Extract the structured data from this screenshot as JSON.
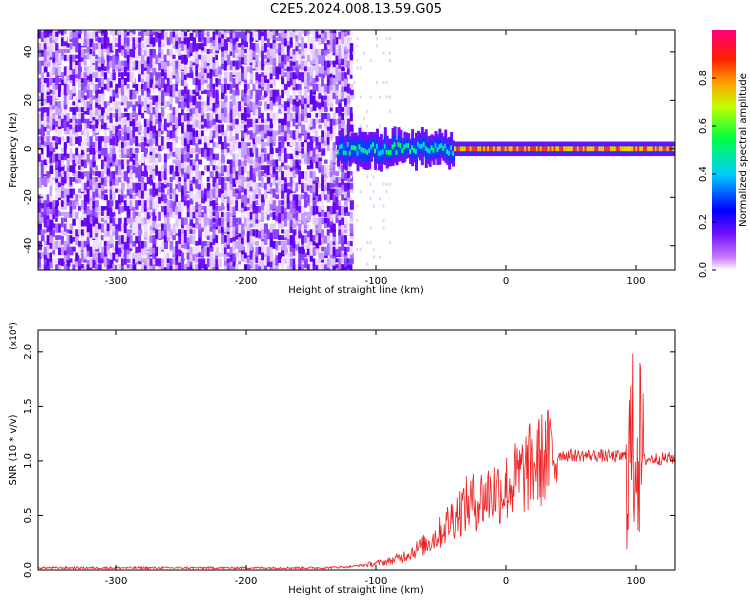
{
  "title": "C2E5.2024.008.13.59.G05",
  "colors": {
    "snr_line": "#ee2020",
    "spectrogram_noise": "#7010ff",
    "spectrogram_peak": "#ff3030"
  },
  "chart_data": [
    {
      "type": "heatmap",
      "xlabel": "Height of straight line (km)",
      "ylabel": "Frequency (Hz)",
      "xlim": [
        -360,
        130
      ],
      "ylim": [
        -50,
        49
      ],
      "xticks": [
        -300,
        -200,
        -100,
        0,
        100
      ],
      "yticks": [
        -40,
        -20,
        0,
        20,
        40
      ],
      "colorbar": {
        "label": "Normalized spectral amplitude",
        "range": [
          0.0,
          1.0
        ],
        "ticks": [
          "0.0",
          "0.2",
          "0.4",
          "0.6",
          "0.8"
        ],
        "colormap": "rainbow (purple-blue-cyan-green-yellow-orange-red-magenta)"
      },
      "regions": [
        {
          "x_range": [
            -360,
            -120
          ],
          "freq_range": [
            -50,
            49
          ],
          "level": "broadband noise",
          "amplitude": 0.15
        },
        {
          "x_range": [
            -120,
            -90
          ],
          "freq_range": [
            -50,
            49
          ],
          "level": "sparse noise",
          "amplitude": 0.05
        },
        {
          "x_range": [
            -130,
            130
          ],
          "freq_center": 0,
          "freq_halfwidth": 4,
          "level": "carrier band",
          "amplitude": 0.9
        }
      ],
      "grid": false
    },
    {
      "type": "line",
      "xlabel": "Height of straight line (km)",
      "ylabel": "SNR (10 * v/v)",
      "y_multiplier": "(x10⁴)",
      "xlim": [
        -360,
        130
      ],
      "ylim": [
        0.0,
        2.2
      ],
      "xticks": [
        -300,
        -200,
        -100,
        0,
        100
      ],
      "yticks": [
        "0.0",
        "0.5",
        "1.0",
        "1.5",
        "2.0"
      ],
      "series": [
        {
          "x": [
            -360,
            -300,
            -200,
            -140,
            -120,
            -100,
            -90,
            -80,
            -70,
            -60,
            -50,
            -40,
            -30,
            -20,
            -10,
            0,
            10,
            20,
            30,
            40,
            50,
            60,
            70,
            80,
            90,
            95,
            100,
            105,
            110,
            120,
            130
          ],
          "values": [
            0.02,
            0.02,
            0.02,
            0.02,
            0.03,
            0.06,
            0.08,
            0.12,
            0.18,
            0.25,
            0.35,
            0.5,
            0.6,
            0.65,
            0.72,
            0.75,
            0.85,
            0.95,
            1.03,
            1.06,
            1.05,
            1.05,
            1.05,
            1.04,
            1.04,
            1.05,
            1.2,
            1.0,
            1.02,
            1.02,
            1.03
          ]
        }
      ],
      "grid": false
    }
  ]
}
